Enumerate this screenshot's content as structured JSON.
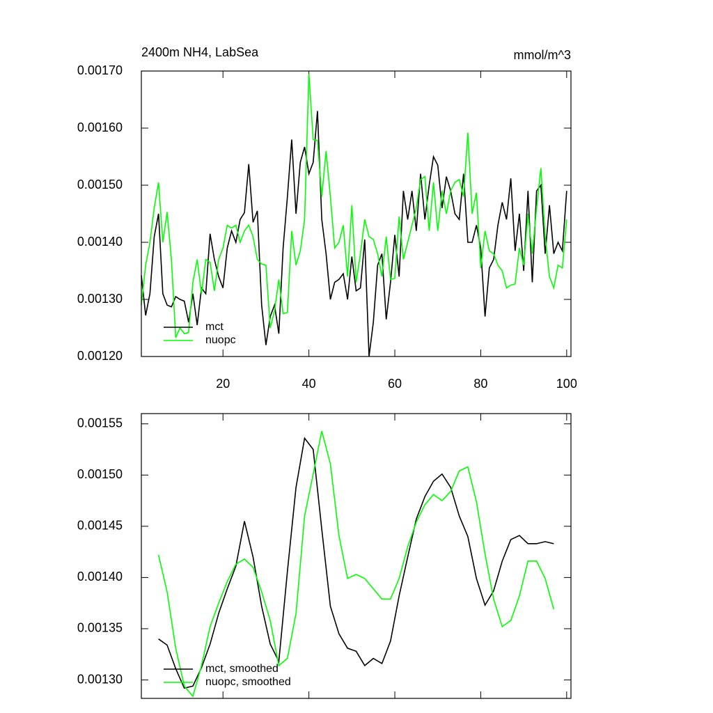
{
  "chart_data": [
    {
      "type": "line",
      "title": "2400m NH4, LabSea",
      "units_title": "mmol/m^3",
      "x": [
        1,
        2,
        3,
        4,
        5,
        6,
        7,
        8,
        9,
        10,
        11,
        12,
        13,
        14,
        15,
        16,
        17,
        18,
        19,
        20,
        21,
        22,
        23,
        24,
        25,
        26,
        27,
        28,
        29,
        30,
        31,
        32,
        33,
        34,
        35,
        36,
        37,
        38,
        39,
        40,
        41,
        42,
        43,
        44,
        45,
        46,
        47,
        48,
        49,
        50,
        51,
        52,
        53,
        54,
        55,
        56,
        57,
        58,
        59,
        60,
        61,
        62,
        63,
        64,
        65,
        66,
        67,
        68,
        69,
        70,
        71,
        72,
        73,
        74,
        75,
        76,
        77,
        78,
        79,
        80,
        81,
        82,
        83,
        84,
        85,
        86,
        87,
        88,
        89,
        90,
        91,
        92,
        93,
        94,
        95,
        96,
        97,
        98,
        99,
        100
      ],
      "series": [
        {
          "name": "mct",
          "color": "#000000",
          "values": [
            0.001342,
            0.001272,
            0.00131,
            0.00141,
            0.00145,
            0.00131,
            0.00129,
            0.001287,
            0.001305,
            0.0013,
            0.001297,
            0.00126,
            0.00131,
            0.001255,
            0.00132,
            0.00131,
            0.001415,
            0.00137,
            0.00134,
            0.00132,
            0.00139,
            0.00142,
            0.0014,
            0.00144,
            0.001452,
            0.001537,
            0.001435,
            0.001455,
            0.00129,
            0.00122,
            0.00127,
            0.00129,
            0.00124,
            0.00139,
            0.00148,
            0.00158,
            0.00145,
            0.00154,
            0.001567,
            0.00152,
            0.00154,
            0.00163,
            0.00144,
            0.00138,
            0.0013,
            0.00133,
            0.001335,
            0.001345,
            0.0013,
            0.001375,
            0.001315,
            0.00132,
            0.001405,
            0.0012,
            0.00126,
            0.00136,
            0.00138,
            0.001265,
            0.00133,
            0.001413,
            0.00134,
            0.00149,
            0.00144,
            0.00149,
            0.00142,
            0.00152,
            0.00144,
            0.0015,
            0.00155,
            0.001535,
            0.00146,
            0.001515,
            0.00149,
            0.00145,
            0.00144,
            0.00152,
            0.0014,
            0.0014,
            0.00143,
            0.00139,
            0.00127,
            0.001355,
            0.00137,
            0.00143,
            0.00147,
            0.00144,
            0.001512,
            0.001385,
            0.00145,
            0.00135,
            0.00149,
            0.00133,
            0.00149,
            0.0015,
            0.00138,
            0.001465,
            0.00138,
            0.0014,
            0.001385,
            0.00149
          ]
        },
        {
          "name": "nuopc",
          "color": "#00ff00",
          "values": [
            0.00129,
            0.00136,
            0.0014,
            0.00146,
            0.001505,
            0.0014,
            0.001453,
            0.00137,
            0.001233,
            0.00125,
            0.00124,
            0.001242,
            0.00133,
            0.00137,
            0.00131,
            0.00137,
            0.001365,
            0.001315,
            0.00137,
            0.00139,
            0.00143,
            0.001425,
            0.00143,
            0.0014,
            0.00142,
            0.00143,
            0.00141,
            0.00137,
            0.001362,
            0.00136,
            0.00125,
            0.00128,
            0.001335,
            0.001275,
            0.001277,
            0.00142,
            0.00136,
            0.001385,
            0.00144,
            0.001695,
            0.00158,
            0.001578,
            0.00148,
            0.00156,
            0.00148,
            0.00139,
            0.0014,
            0.00143,
            0.00134,
            0.001465,
            0.00133,
            0.00138,
            0.00144,
            0.00141,
            0.001405,
            0.00138,
            0.00134,
            0.00141,
            0.001335,
            0.001337,
            0.001445,
            0.00137,
            0.0014,
            0.00143,
            0.00146,
            0.00151,
            0.001515,
            0.00142,
            0.001505,
            0.00142,
            0.00149,
            0.00145,
            0.00149,
            0.001505,
            0.00151,
            0.00148,
            0.001592,
            0.00145,
            0.001487,
            0.001355,
            0.00142,
            0.001385,
            0.00138,
            0.00136,
            0.00135,
            0.00132,
            0.001325,
            0.001327,
            0.00139,
            0.00136,
            0.00145,
            0.00138,
            0.00146,
            0.00153,
            0.00141,
            0.00134,
            0.00132,
            0.00136,
            0.001355,
            0.00144
          ]
        }
      ],
      "xlim": [
        1,
        101
      ],
      "xticks": [
        20,
        40,
        60,
        80,
        100
      ],
      "show_xtick_labels": true,
      "ylim": [
        0.0012,
        0.0017
      ],
      "yticks": [
        {
          "value": 0.0012,
          "label": "0.00120"
        },
        {
          "value": 0.0013,
          "label": "0.00130"
        },
        {
          "value": 0.0014,
          "label": "0.00140"
        },
        {
          "value": 0.0015,
          "label": "0.00150"
        },
        {
          "value": 0.0016,
          "label": "0.00160"
        },
        {
          "value": 0.0017,
          "label": "0.00170"
        }
      ],
      "legend": "lower left"
    },
    {
      "type": "line",
      "x": [
        5,
        7,
        9,
        11,
        13,
        15,
        17,
        19,
        21,
        23,
        25,
        27,
        29,
        31,
        33,
        35,
        37,
        39,
        41,
        43,
        45,
        47,
        49,
        51,
        53,
        55,
        57,
        59,
        61,
        63,
        65,
        67,
        69,
        71,
        73,
        75,
        77,
        79,
        81,
        83,
        85,
        87,
        89,
        91,
        93,
        95,
        97
      ],
      "series": [
        {
          "name": "mct, smoothed",
          "color": "#000000",
          "values": [
            0.00134,
            0.001334,
            0.001311,
            0.001292,
            0.001294,
            0.001312,
            0.001335,
            0.001365,
            0.001389,
            0.001411,
            0.001455,
            0.00142,
            0.001372,
            0.001335,
            0.001318,
            0.001406,
            0.001488,
            0.001536,
            0.001525,
            0.001447,
            0.001372,
            0.001345,
            0.001331,
            0.001328,
            0.001314,
            0.001321,
            0.001316,
            0.001338,
            0.001382,
            0.00142,
            0.001457,
            0.001479,
            0.001494,
            0.001501,
            0.001488,
            0.00146,
            0.00144,
            0.001399,
            0.001373,
            0.001387,
            0.001416,
            0.001437,
            0.001441,
            0.001433,
            0.001433,
            0.001435,
            0.001433
          ]
        },
        {
          "name": "nuopc, smoothed",
          "color": "#00ff00",
          "values": [
            0.001422,
            0.001386,
            0.001331,
            0.001294,
            0.001284,
            0.001314,
            0.001352,
            0.001375,
            0.001396,
            0.001413,
            0.001418,
            0.00141,
            0.001386,
            0.001358,
            0.001314,
            0.001321,
            0.001365,
            0.00146,
            0.001501,
            0.001543,
            0.001511,
            0.001441,
            0.001399,
            0.001403,
            0.001399,
            0.001389,
            0.001379,
            0.001379,
            0.001399,
            0.00143,
            0.001454,
            0.001471,
            0.001481,
            0.001475,
            0.001484,
            0.001504,
            0.001508,
            0.001474,
            0.001423,
            0.001379,
            0.001352,
            0.001358,
            0.001382,
            0.001416,
            0.001416,
            0.001399,
            0.001369
          ]
        }
      ],
      "xlim": [
        1,
        101
      ],
      "xticks": [
        20,
        40,
        60,
        80,
        100
      ],
      "show_xtick_labels": false,
      "ylim": [
        0.001282,
        0.00156
      ],
      "yticks": [
        {
          "value": 0.0013,
          "label": "0.00130"
        },
        {
          "value": 0.00135,
          "label": "0.00135"
        },
        {
          "value": 0.0014,
          "label": "0.00140"
        },
        {
          "value": 0.00145,
          "label": "0.00145"
        },
        {
          "value": 0.0015,
          "label": "0.00150"
        },
        {
          "value": 0.00155,
          "label": "0.00155"
        }
      ],
      "legend": "lower left"
    }
  ]
}
